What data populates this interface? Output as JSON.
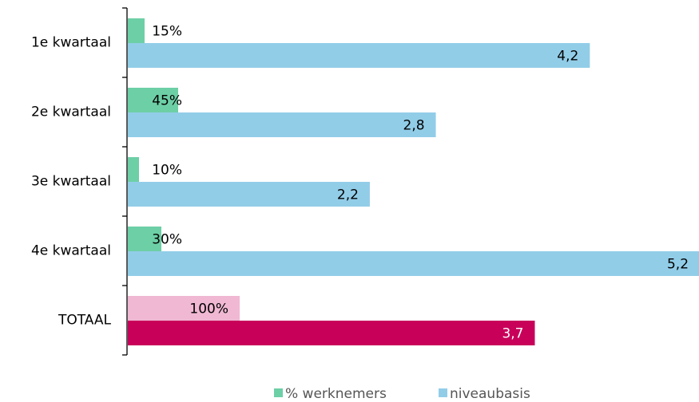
{
  "chart_data": {
    "type": "bar",
    "orientation": "horizontal",
    "categories": [
      "1e kwartaal",
      "2e kwartaal",
      "3e kwartaal",
      "4e kwartaal",
      "TOTAAL"
    ],
    "series": [
      {
        "name": "% werknemers",
        "color": "#6dcfa6",
        "colors": [
          "#6dcfa6",
          "#6dcfa6",
          "#6dcfa6",
          "#6dcfa6",
          "#f0b8d3"
        ],
        "values": [
          15,
          45,
          10,
          30,
          100
        ],
        "value_labels": [
          "15%",
          "45%",
          "10%",
          "30%",
          "100%"
        ]
      },
      {
        "name": "niveaubasis",
        "color": "#92cde8",
        "colors": [
          "#92cde8",
          "#92cde8",
          "#92cde8",
          "#92cde8",
          "#c8005a"
        ],
        "values": [
          4.2,
          2.8,
          2.2,
          5.2,
          3.7
        ],
        "value_labels": [
          "4,2",
          "2,8",
          "2,2",
          "5,2",
          "3,7"
        ]
      }
    ],
    "legend": "bottom"
  }
}
